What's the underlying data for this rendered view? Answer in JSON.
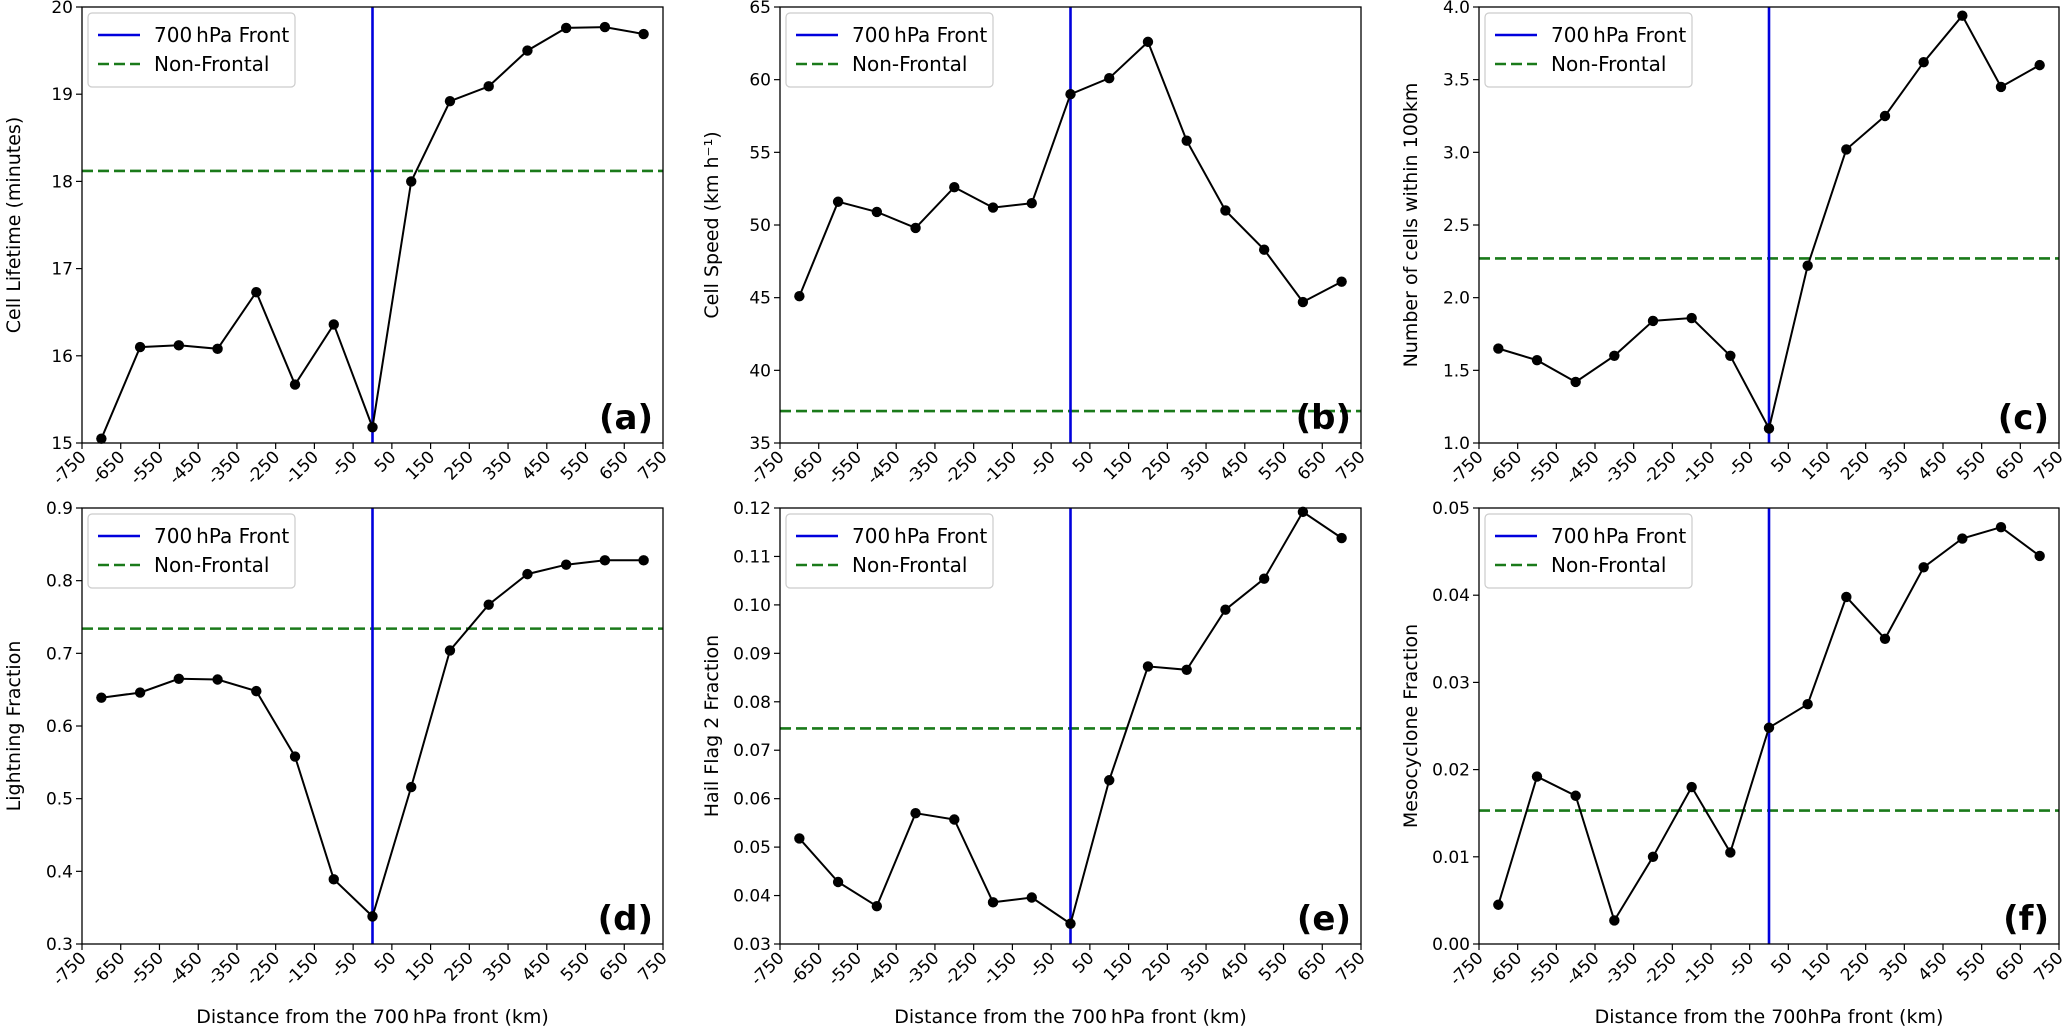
{
  "figure": {
    "x_tick_labels": [
      "-750",
      "-650",
      "-550",
      "-450",
      "-350",
      "-250",
      "-150",
      "-50",
      "50",
      "150",
      "250",
      "350",
      "450",
      "550",
      "650",
      "750"
    ],
    "legend": {
      "front_label": "700 hPa Front",
      "nonfrontal_label": "Non-Frontal"
    },
    "colors": {
      "front": "#0000dd",
      "nonfrontal": "#1a7a1a",
      "series": "#000000"
    }
  },
  "chart_data": [
    {
      "type": "line",
      "panel_label": "(a)",
      "ylabel": "Cell Lifetime (minutes)",
      "xlabel": "",
      "xlim": [
        -750,
        750
      ],
      "ylim": [
        15,
        20
      ],
      "yticks": [
        15,
        16,
        17,
        18,
        19,
        20
      ],
      "ytick_labels": [
        "15",
        "16",
        "17",
        "18",
        "19",
        "20"
      ],
      "x": [
        -700,
        -600,
        -500,
        -400,
        -300,
        -200,
        -100,
        0,
        100,
        200,
        300,
        400,
        500,
        600,
        700
      ],
      "values": [
        15.05,
        16.1,
        16.12,
        16.08,
        16.73,
        15.67,
        16.36,
        15.18,
        18.0,
        18.92,
        19.09,
        19.5,
        19.76,
        19.77,
        19.69
      ],
      "front_x": 0,
      "nonfrontal_y": 18.12
    },
    {
      "type": "line",
      "panel_label": "(b)",
      "ylabel": "Cell Speed (km h⁻¹)",
      "xlabel": "",
      "xlim": [
        -750,
        750
      ],
      "ylim": [
        35,
        65
      ],
      "yticks": [
        35,
        40,
        45,
        50,
        55,
        60,
        65
      ],
      "ytick_labels": [
        "35",
        "40",
        "45",
        "50",
        "55",
        "60",
        "65"
      ],
      "x": [
        -700,
        -600,
        -500,
        -400,
        -300,
        -200,
        -100,
        0,
        100,
        200,
        300,
        400,
        500,
        600,
        700
      ],
      "values": [
        45.1,
        51.6,
        50.9,
        49.8,
        52.6,
        51.2,
        51.5,
        59.0,
        60.1,
        62.6,
        55.8,
        51.0,
        48.3,
        44.7,
        46.1
      ],
      "front_x": 0,
      "nonfrontal_y": 37.2
    },
    {
      "type": "line",
      "panel_label": "(c)",
      "ylabel": "Number of cells within 100km",
      "xlabel": "",
      "xlim": [
        -750,
        750
      ],
      "ylim": [
        1.0,
        4.0
      ],
      "yticks": [
        1.0,
        1.5,
        2.0,
        2.5,
        3.0,
        3.5,
        4.0
      ],
      "ytick_labels": [
        "1.0",
        "1.5",
        "2.0",
        "2.5",
        "3.0",
        "3.5",
        "4.0"
      ],
      "x": [
        -700,
        -600,
        -500,
        -400,
        -300,
        -200,
        -100,
        0,
        100,
        200,
        300,
        400,
        500,
        600,
        700
      ],
      "values": [
        1.65,
        1.57,
        1.42,
        1.6,
        1.84,
        1.86,
        1.6,
        1.1,
        2.22,
        3.02,
        3.25,
        3.62,
        3.94,
        3.45,
        3.6
      ],
      "front_x": 0,
      "nonfrontal_y": 2.27
    },
    {
      "type": "line",
      "panel_label": "(d)",
      "ylabel": "Lightning Fraction",
      "xlabel": "Distance from the 700 hPa front (km)",
      "xlim": [
        -750,
        750
      ],
      "ylim": [
        0.3,
        0.9
      ],
      "yticks": [
        0.3,
        0.4,
        0.5,
        0.6,
        0.7,
        0.8,
        0.9
      ],
      "ytick_labels": [
        "0.3",
        "0.4",
        "0.5",
        "0.6",
        "0.7",
        "0.8",
        "0.9"
      ],
      "x": [
        -700,
        -600,
        -500,
        -400,
        -300,
        -200,
        -100,
        0,
        100,
        200,
        300,
        400,
        500,
        600,
        700
      ],
      "values": [
        0.639,
        0.646,
        0.665,
        0.664,
        0.648,
        0.558,
        0.389,
        0.338,
        0.516,
        0.704,
        0.767,
        0.809,
        0.822,
        0.828,
        0.828
      ],
      "front_x": 0,
      "nonfrontal_y": 0.734
    },
    {
      "type": "line",
      "panel_label": "(e)",
      "ylabel": "Hail Flag 2 Fraction",
      "xlabel": "Distance from the 700 hPa front (km)",
      "xlim": [
        -750,
        750
      ],
      "ylim": [
        0.03,
        0.12
      ],
      "yticks": [
        0.03,
        0.04,
        0.05,
        0.06,
        0.07,
        0.08,
        0.09,
        0.1,
        0.11,
        0.12
      ],
      "ytick_labels": [
        "0.03",
        "0.04",
        "0.05",
        "0.06",
        "0.07",
        "0.08",
        "0.09",
        "0.10",
        "0.11",
        "0.12"
      ],
      "x": [
        -700,
        -600,
        -500,
        -400,
        -300,
        -200,
        -100,
        0,
        100,
        200,
        300,
        400,
        500,
        600,
        700
      ],
      "values": [
        0.0518,
        0.0428,
        0.0378,
        0.057,
        0.0557,
        0.0386,
        0.0396,
        0.0342,
        0.0638,
        0.0873,
        0.0866,
        0.099,
        0.1054,
        0.1192,
        0.1138
      ],
      "front_x": 0,
      "nonfrontal_y": 0.0745
    },
    {
      "type": "line",
      "panel_label": "(f)",
      "ylabel": "Mesocyclone Fraction",
      "xlabel": "Distance from the 700hPa front (km)",
      "xlim": [
        -750,
        750
      ],
      "ylim": [
        0.0,
        0.05
      ],
      "yticks": [
        0.0,
        0.01,
        0.02,
        0.03,
        0.04,
        0.05
      ],
      "ytick_labels": [
        "0.00",
        "0.01",
        "0.02",
        "0.03",
        "0.04",
        "0.05"
      ],
      "x": [
        -700,
        -600,
        -500,
        -400,
        -300,
        -200,
        -100,
        0,
        100,
        200,
        300,
        400,
        500,
        600,
        700
      ],
      "values": [
        0.0045,
        0.0192,
        0.017,
        0.0027,
        0.01,
        0.018,
        0.0105,
        0.0248,
        0.0275,
        0.0398,
        0.035,
        0.0432,
        0.0465,
        0.0478,
        0.0445
      ],
      "front_x": 0,
      "nonfrontal_y": 0.0153
    }
  ]
}
